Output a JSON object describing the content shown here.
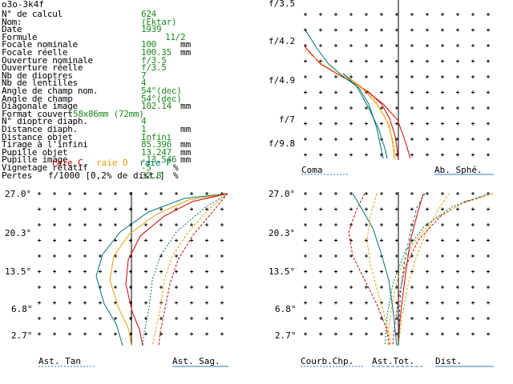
{
  "window_title": "o3o-3k4f",
  "specs": [
    {
      "label": "N° de calcul",
      "value": "624",
      "unit": ""
    },
    {
      "label": "Nom:",
      "value": "(Ektar)",
      "unit": ""
    },
    {
      "label": "Date",
      "value": "1939",
      "unit": ""
    },
    {
      "label": "Formule",
      "value": "11/2",
      "unit": ""
    },
    {
      "label": "Focale nominale",
      "value": "100",
      "unit": "mm"
    },
    {
      "label": "Focale réelle",
      "value": "100.35",
      "unit": "mm"
    },
    {
      "label": "Ouverture nominale",
      "value": "f/3.5",
      "unit": ""
    },
    {
      "label": "Ouverture réelle",
      "value": "f/3.5",
      "unit": ""
    },
    {
      "label": "Nb de dioptres",
      "value": "7",
      "unit": ""
    },
    {
      "label": "Nb de lentilles",
      "value": "4",
      "unit": ""
    },
    {
      "label": "Angle de champ nom.",
      "value": "54°(dec)",
      "unit": ""
    },
    {
      "label": "Angle de champ",
      "value": "54°(dec)",
      "unit": ""
    },
    {
      "label": "Diagonale image",
      "value": "102.14",
      "unit": "mm"
    },
    {
      "label": "Format couvert",
      "value": "58x86mm (72mm)",
      "unit": ""
    },
    {
      "label": "N° dioptre diaph.",
      "value": "4",
      "unit": ""
    },
    {
      "label": "Distance diaph.",
      "value": "1",
      "unit": "mm"
    },
    {
      "label": "Distance objet",
      "value": "Infini",
      "unit": ""
    },
    {
      "label": "Tirage à l'infini",
      "value": "85.396",
      "unit": "mm"
    },
    {
      "label": "Pupille objet",
      "value": "13.247",
      "unit": "mm"
    },
    {
      "label": "Pupille image",
      "value": "-13.546",
      "unit": "mm"
    },
    {
      "label": "Vignetage relatif",
      "value": "-5",
      "unit": "%"
    },
    {
      "label": "Pertes",
      "value": "32.8",
      "unit": "%"
    }
  ],
  "legend": {
    "c": {
      "label": "raie C",
      "color": "#cc0000"
    },
    "d": {
      "label": "raie D",
      "color": "#e8a000"
    },
    "f": {
      "label": "raie F",
      "color": "#007070"
    }
  },
  "scale_note": "f/1000 [0,2% de dist.]",
  "coma_panel": {
    "apertures": [
      "f/3.5",
      "f/4.2",
      "f/4.9",
      "f/7",
      "f/9.8"
    ],
    "caption_left": "Coma",
    "caption_right": "Ab. Sphé."
  },
  "astig_panel": {
    "fields": [
      "27.0°",
      "20.3°",
      "13.5°",
      "6.8°",
      "2.7°"
    ],
    "caption_left": "Ast. Tan",
    "caption_right": "Ast. Sag."
  },
  "field_panel": {
    "fields": [
      "27.0°",
      "20.3°",
      "13.5°",
      "6.8°",
      "2.7°"
    ],
    "caption_1": "Courb.Chp.",
    "caption_2": "Ast.Tot.",
    "caption_3": "Dist."
  }
}
